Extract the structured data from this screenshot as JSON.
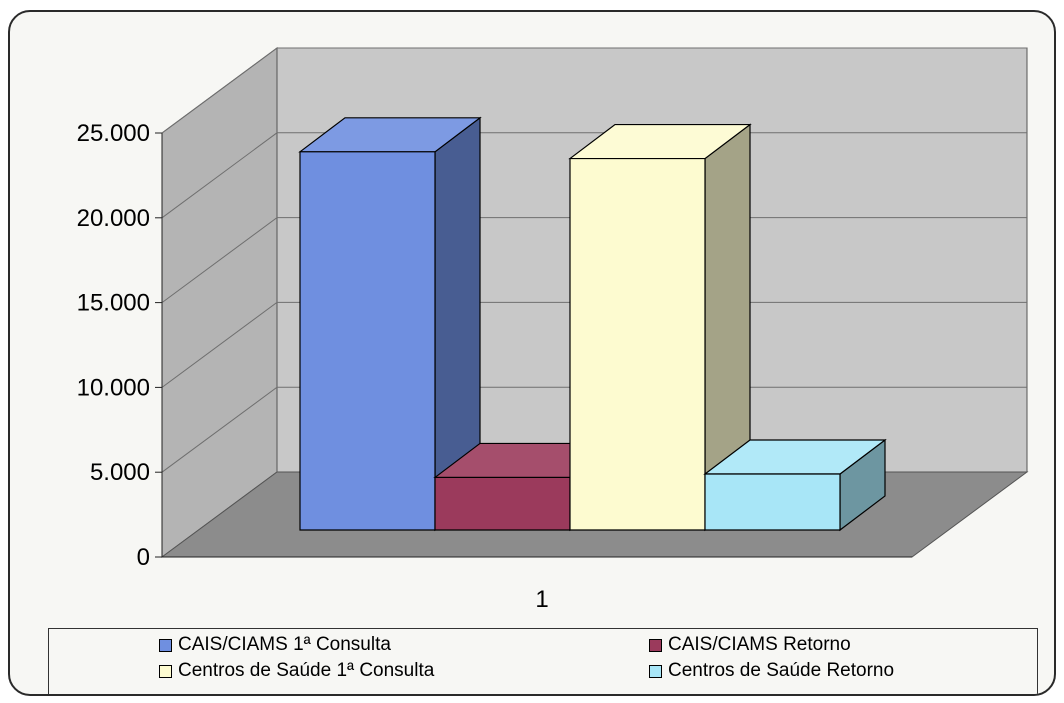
{
  "chart_data": {
    "type": "bar",
    "style": "3d-clustered",
    "categories": [
      "1"
    ],
    "series": [
      {
        "name": "CAIS/CIAMS 1ª Consulta",
        "values": [
          22300
        ],
        "color": "#6f8fe0"
      },
      {
        "name": "CAIS/CIAMS Retorno",
        "values": [
          3100
        ],
        "color": "#9b3a5c"
      },
      {
        "name": "Centros de Saúde 1ª Consulta",
        "values": [
          21900
        ],
        "color": "#fdfbd0"
      },
      {
        "name": "Centros de Saúde Retorno",
        "values": [
          3300
        ],
        "color": "#a8e6f7"
      }
    ],
    "yticks": [
      "0",
      "5.000",
      "10.000",
      "15.000",
      "20.000",
      "25.000"
    ],
    "ylim": [
      0,
      25000
    ],
    "grid": true,
    "legend_position": "bottom",
    "title": "",
    "xlabel": "",
    "ylabel": ""
  },
  "colors": {
    "back_wall": "#c8c8c8",
    "side_wall": "#b4b4b4",
    "floor": "#8c8c8c",
    "gridline": "#6f6f6f"
  }
}
